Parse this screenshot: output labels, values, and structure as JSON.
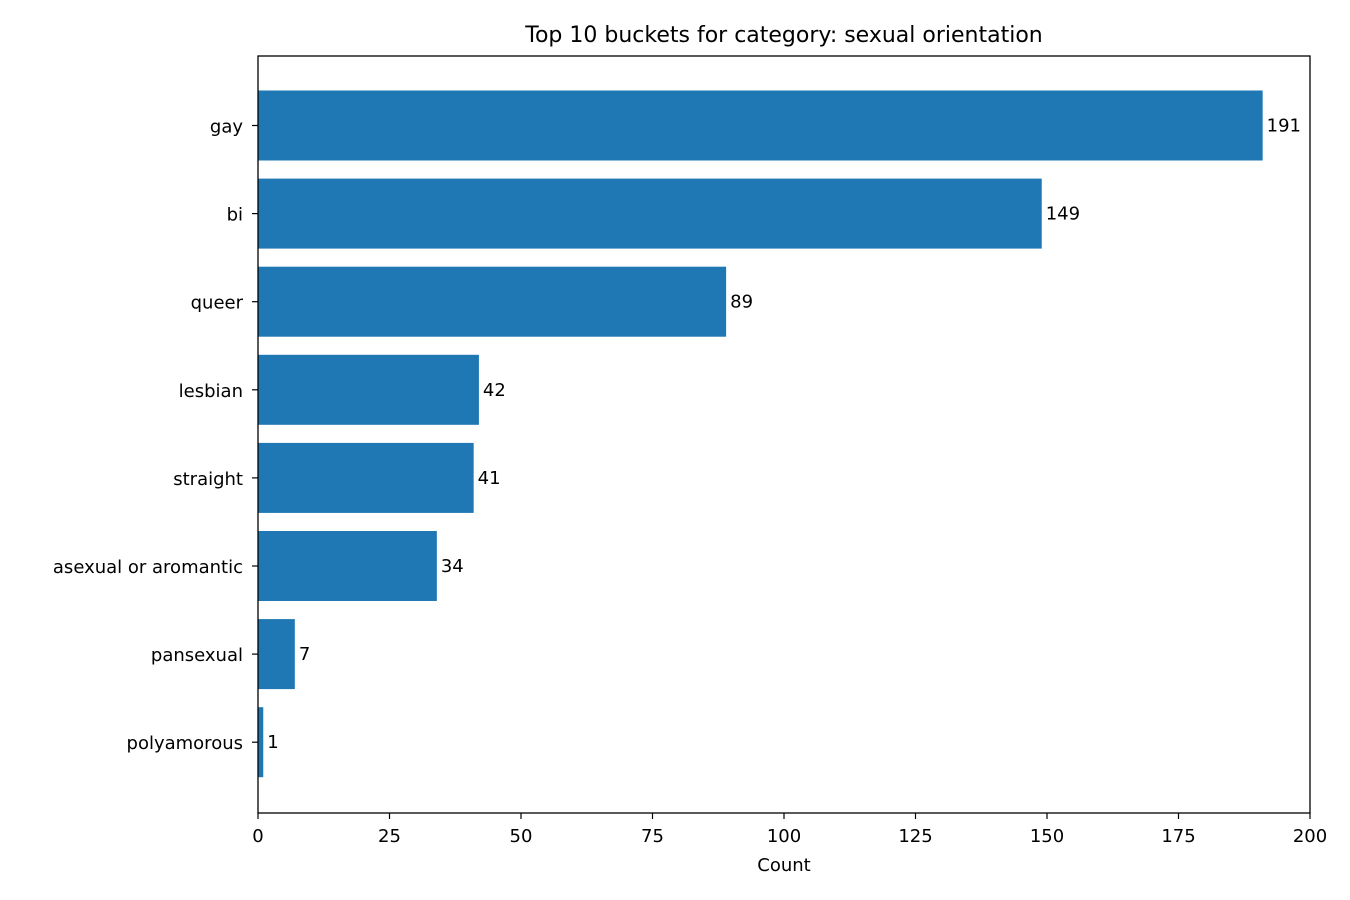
{
  "chart_data": {
    "type": "bar",
    "orientation": "horizontal",
    "title": "Top 10 buckets for category: sexual orientation",
    "xlabel": "Count",
    "ylabel": "",
    "categories": [
      "gay",
      "bi",
      "queer",
      "lesbian",
      "straight",
      "asexual or aromantic",
      "pansexual",
      "polyamorous"
    ],
    "values": [
      191,
      149,
      89,
      42,
      41,
      34,
      7,
      1
    ],
    "xlim": [
      0,
      200
    ],
    "xticks": [
      0,
      25,
      50,
      75,
      100,
      125,
      150,
      175,
      200
    ],
    "grid": false,
    "bar_color": "#1f77b4"
  }
}
